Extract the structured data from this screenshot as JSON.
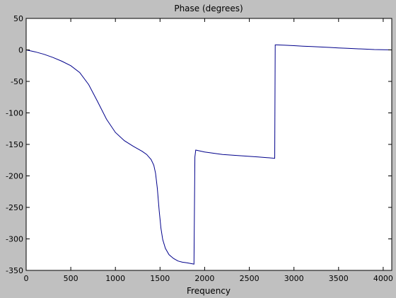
{
  "chart_data": {
    "type": "line",
    "title": "Phase (degrees)",
    "xlabel": "Frequency",
    "ylabel": "",
    "xlim": [
      0,
      4096
    ],
    "ylim": [
      -350,
      50
    ],
    "xticks": [
      0,
      500,
      1000,
      1500,
      2000,
      2500,
      3000,
      3500,
      4000
    ],
    "yticks": [
      50,
      0,
      -50,
      -100,
      -150,
      -200,
      -250,
      -300,
      -350
    ],
    "grid": false,
    "legend": "none",
    "colors": {
      "line": "#00008b",
      "plot_background": "#ffffff",
      "figure_background": "#c0c0c0"
    },
    "series": [
      {
        "x": [
          0,
          100,
          200,
          300,
          400,
          500,
          600,
          700,
          800,
          900,
          1000,
          1100,
          1200,
          1300,
          1350,
          1400,
          1430,
          1450,
          1470,
          1490,
          1510,
          1530,
          1560,
          1600,
          1650,
          1700,
          1750,
          1800,
          1880,
          1890,
          1900,
          2000,
          2100,
          2200,
          2300,
          2400,
          2500,
          2600,
          2700,
          2785,
          2790,
          2800,
          2900,
          3000,
          3100,
          3200,
          3300,
          3400,
          3500,
          3600,
          3700,
          3800,
          3900,
          4000,
          4096
        ],
        "y": [
          0,
          -3,
          -7,
          -12,
          -18,
          -25,
          -36,
          -55,
          -82,
          -110,
          -131,
          -144,
          -153,
          -161,
          -166,
          -174,
          -183,
          -196,
          -220,
          -255,
          -283,
          -301,
          -315,
          -325,
          -331,
          -335,
          -337,
          -338,
          -340,
          -170,
          -159,
          -162,
          -164,
          -166,
          -167,
          -168,
          -169,
          -170,
          -171,
          -172,
          8,
          8,
          7.4,
          6.7,
          6,
          5.3,
          4.6,
          3.9,
          3.2,
          2.5,
          1.8,
          1.2,
          0.6,
          0.2,
          0
        ]
      }
    ]
  }
}
